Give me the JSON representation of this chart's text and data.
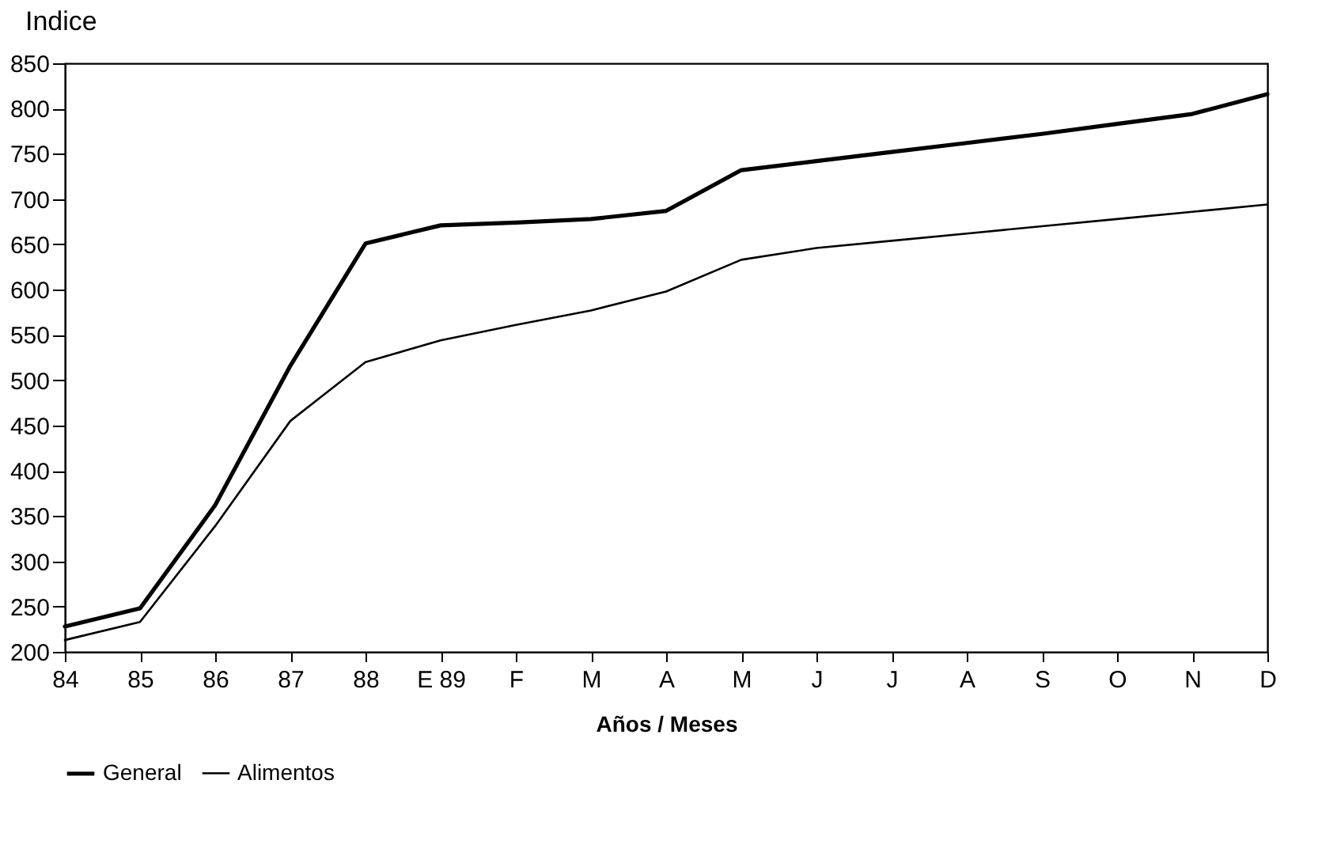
{
  "chart_data": {
    "type": "line",
    "title": "Indice",
    "xlabel": "Años / Meses",
    "categories": [
      "84",
      "85",
      "86",
      "87",
      "88",
      "E 89",
      "F",
      "M",
      "A",
      "M",
      "J",
      "J",
      "A",
      "S",
      "O",
      "N",
      "D"
    ],
    "ylim": [
      200,
      850
    ],
    "yticks": [
      200,
      250,
      300,
      350,
      400,
      450,
      500,
      550,
      600,
      650,
      700,
      750,
      800,
      850
    ],
    "series": [
      {
        "name": "General",
        "color": "#000000",
        "values": [
          228,
          248,
          362,
          516,
          651,
          671,
          674,
          678,
          687,
          732,
          742,
          752,
          762,
          772,
          783,
          794,
          816
        ]
      },
      {
        "name": "Alimentos",
        "color": "#000000",
        "values": [
          213,
          233,
          339,
          455,
          520,
          544,
          561,
          577,
          598,
          633,
          646,
          654,
          662,
          670,
          678,
          686,
          694
        ]
      }
    ],
    "grid": false,
    "legend": "bottom",
    "marker": "none",
    "line_style": "solid"
  }
}
